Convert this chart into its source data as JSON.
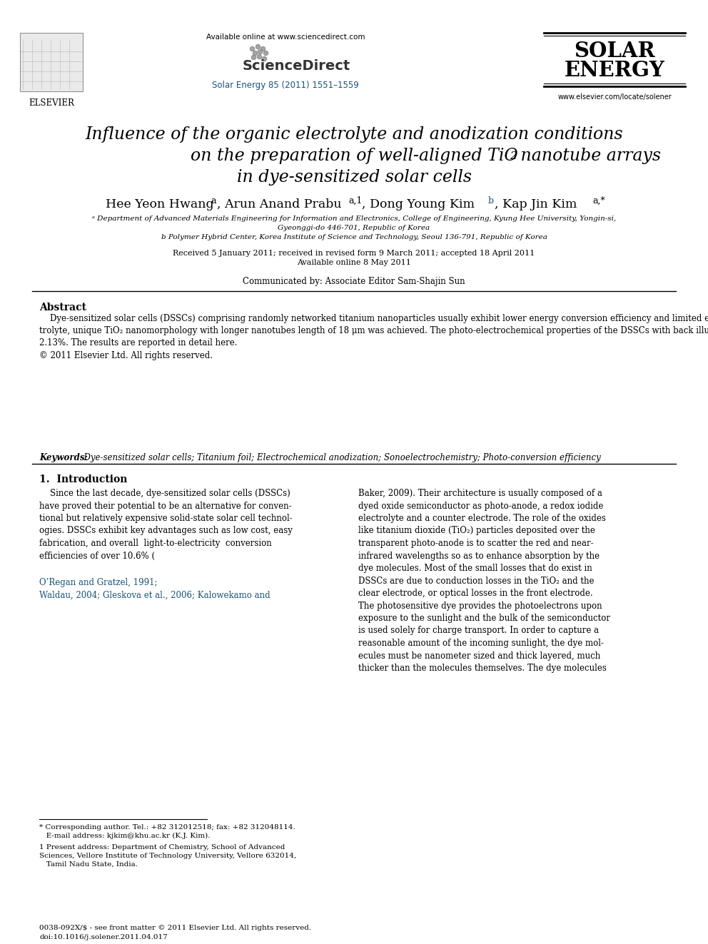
{
  "bg_color": "#ffffff",
  "available_online": "Available online at www.sciencedirect.com",
  "journal_ref": "Solar Energy 85 (2011) 1551–1559",
  "journal_name_line1": "SOLAR",
  "journal_name_line2": "ENERGY",
  "website": "www.elsevier.com/locate/solener",
  "elsevier": "ELSEVIER",
  "title_line1": "Influence of the organic electrolyte and anodization conditions",
  "title_line2_pre": "on the preparation of well-aligned TiO",
  "title_line2_sub": "2",
  "title_line2_post": " nanotube arrays",
  "title_line3": "in dye-sensitized solar cells",
  "received": "Received 5 January 2011; received in revised form 9 March 2011; accepted 18 April 2011",
  "available": "Available online 8 May 2011",
  "communicated": "Communicated by: Associate Editor Sam-Shajin Sun",
  "abstract_title": "Abstract",
  "keywords_label": "Keywords:",
  "keywords_text": "  Dye-sensitized solar cells; Titanium foil; Electrochemical anodization; Sonoelectrochemistry; Photo-conversion efficiency",
  "section1_title": "1.  Introduction",
  "bottom_line1": "0038-092X/$ - see front matter © 2011 Elsevier Ltd. All rights reserved.",
  "bottom_line2": "doi:10.1016/j.solener.2011.04.017",
  "link_color": "#1a5276",
  "blue_ref_color": "#1a5276"
}
